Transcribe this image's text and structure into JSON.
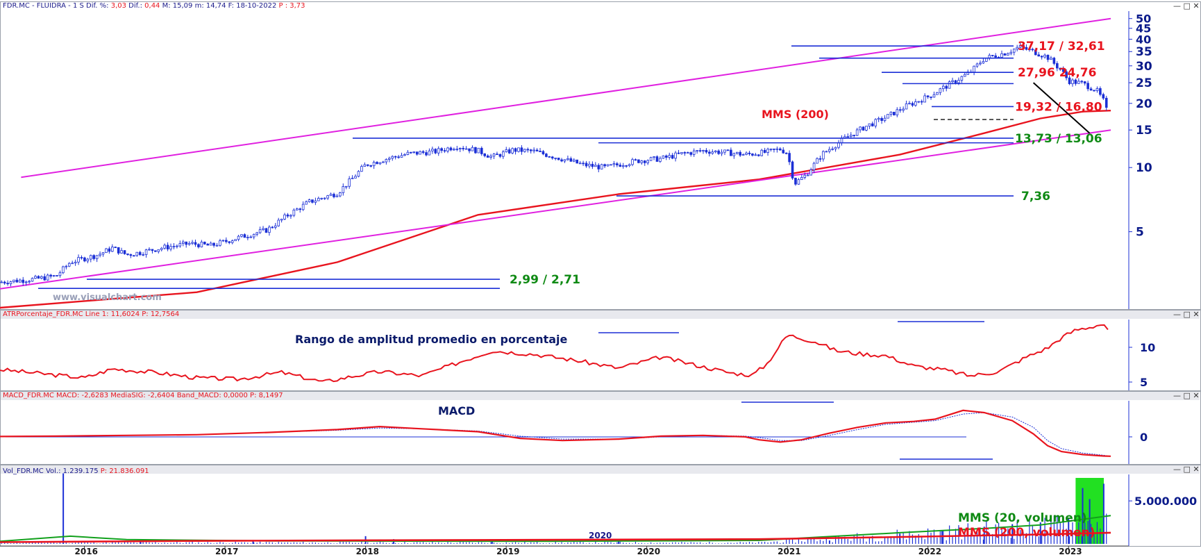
{
  "panels": {
    "price": {
      "header": [
        "FDR.MC - FLUIDRA - 1 S Dif. %: ",
        "3,03",
        " Dif.: ",
        "0,44",
        " M: 15,09 m: 14,74 F: 18-10-2022 ",
        "P : 3,73"
      ],
      "watermark": "www.visualchart.com",
      "mms_label": "MMS (200)",
      "level_labels": [
        {
          "text": "37,17 / 32,61",
          "color": "#e8141e"
        },
        {
          "text": "27,96 24,76",
          "color": "#e8141e"
        },
        {
          "text": "19,32 / 16,80",
          "color": "#e8141e"
        },
        {
          "text": "13,73 / 13,06",
          "color": "#0f8a14"
        },
        {
          "text": "7,36",
          "color": "#0f8a14"
        },
        {
          "text": "2,99 / 2,71",
          "color": "#0f8a14"
        }
      ],
      "y_ticks": [
        "50",
        "45",
        "40",
        "35",
        "30",
        "25",
        "20",
        "15",
        "10",
        "5"
      ]
    },
    "atr": {
      "header": "ATRPorcentaje_FDR.MC Line 1: 11,6024 P: 12,7564",
      "title": "Rango de amplitud promedio en porcentaje",
      "y_ticks": [
        "10",
        "5"
      ]
    },
    "macd": {
      "header": "MACD_FDR.MC MACD: -2,6283 MediaSIG: -2,6404 Band_MACD: 0,0000 P: 8,1497",
      "title": "MACD",
      "y_ticks": [
        "0"
      ]
    },
    "volume": {
      "header_a": "Vol_FDR.MC Vol.: 1.239.175",
      "header_b": " P: 21.836.091",
      "ma20_label": "MMS (20, volumen)",
      "ma200_label": "MMS (200, volumen)",
      "inline_year": "2020",
      "y_ticks": [
        "5.000.000"
      ]
    }
  },
  "x_axis": {
    "labels": [
      "2016",
      "2017",
      "2018",
      "2019",
      "2020",
      "2021",
      "2022",
      "2023"
    ]
  },
  "colors": {
    "candles": "#1b2fd6",
    "ma200": "#e8141e",
    "channel": "#e020e0",
    "levels": "#1b2fd6",
    "macd": "#e8141e",
    "signal": "#1b2fd6",
    "vol_ma20": "#12a01c",
    "highlight": "#22e022",
    "axis_text": "#0a1a8a"
  },
  "chart_data": [
    {
      "type": "candlestick",
      "name": "FDR.MC - FLUIDRA",
      "scale": "log",
      "ylim": [
        2.2,
        55
      ],
      "y_ticks": [
        5,
        10,
        15,
        20,
        25,
        30,
        35,
        40,
        45,
        50
      ],
      "x_range": [
        2015.6,
        2023.5
      ],
      "close_path": [
        [
          2015.6,
          2.9
        ],
        [
          2015.85,
          3.0
        ],
        [
          2016.0,
          3.1
        ],
        [
          2016.1,
          3.6
        ],
        [
          2016.3,
          3.9
        ],
        [
          2016.4,
          4.2
        ],
        [
          2016.5,
          3.9
        ],
        [
          2016.6,
          4.0
        ],
        [
          2016.75,
          4.2
        ],
        [
          2016.95,
          4.4
        ],
        [
          2017.1,
          4.3
        ],
        [
          2017.3,
          4.7
        ],
        [
          2017.5,
          5.1
        ],
        [
          2017.65,
          6.0
        ],
        [
          2017.8,
          6.9
        ],
        [
          2018.0,
          7.6
        ],
        [
          2018.1,
          8.8
        ],
        [
          2018.2,
          10.3
        ],
        [
          2018.35,
          11.0
        ],
        [
          2018.5,
          11.6
        ],
        [
          2018.7,
          11.9
        ],
        [
          2018.85,
          12.6
        ],
        [
          2019.0,
          12.0
        ],
        [
          2019.1,
          11.2
        ],
        [
          2019.25,
          12.1
        ],
        [
          2019.4,
          11.9
        ],
        [
          2019.55,
          11.2
        ],
        [
          2019.75,
          10.3
        ],
        [
          2019.9,
          10.0
        ],
        [
          2020.05,
          10.5
        ],
        [
          2020.15,
          10.8
        ],
        [
          2020.3,
          11.0
        ],
        [
          2020.45,
          11.6
        ],
        [
          2020.6,
          12.0
        ],
        [
          2020.75,
          11.8
        ],
        [
          2020.9,
          11.5
        ],
        [
          2021.05,
          11.8
        ],
        [
          2021.15,
          12.2
        ],
        [
          2021.2,
          11.7
        ],
        [
          2021.25,
          8.4
        ],
        [
          2021.33,
          9.2
        ],
        [
          2021.45,
          11.6
        ],
        [
          2021.6,
          13.6
        ],
        [
          2021.75,
          15.5
        ],
        [
          2021.9,
          17.2
        ],
        [
          2022.05,
          19.5
        ],
        [
          2022.2,
          21.5
        ],
        [
          2022.35,
          24.5
        ],
        [
          2022.5,
          28.0
        ],
        [
          2022.6,
          32.5
        ],
        [
          2022.75,
          34.5
        ],
        [
          2022.85,
          36.8
        ],
        [
          2022.95,
          35.0
        ],
        [
          2023.05,
          33.0
        ],
        [
          2023.15,
          28.5
        ],
        [
          2023.2,
          25.5
        ],
        [
          2023.3,
          24.8
        ],
        [
          2023.4,
          23.0
        ],
        [
          2023.45,
          20.5
        ],
        [
          2023.5,
          16.0
        ]
      ],
      "price_lines": [
        {
          "name": "ma200",
          "points": [
            [
              2015.6,
              2.2
            ],
            [
              2017.0,
              2.6
            ],
            [
              2018.0,
              3.6
            ],
            [
              2019.0,
              6.0
            ],
            [
              2020.0,
              7.5
            ],
            [
              2021.0,
              8.8
            ],
            [
              2022.0,
              11.5
            ],
            [
              2022.6,
              14.5
            ],
            [
              2023.0,
              17.0
            ],
            [
              2023.3,
              18.3
            ],
            [
              2023.5,
              18.5
            ]
          ]
        },
        {
          "name": "channel-upper",
          "points": [
            [
              2015.75,
              9.0
            ],
            [
              2023.5,
              50.0
            ]
          ]
        },
        {
          "name": "channel-lower",
          "points": [
            [
              2015.6,
              2.7
            ],
            [
              2023.5,
              15.0
            ]
          ]
        },
        {
          "name": "trendline-down",
          "points": [
            [
              2022.95,
              25.0
            ],
            [
              2023.35,
              14.5
            ]
          ]
        }
      ],
      "levels": [
        37.17,
        32.61,
        27.96,
        24.76,
        19.32,
        16.8,
        13.73,
        13.06,
        7.36,
        2.99,
        2.71
      ]
    },
    {
      "type": "line",
      "name": "ATRPorcentaje_FDR.MC",
      "ylim": [
        4,
        14
      ],
      "y_ticks": [
        5,
        10
      ],
      "series": [
        {
          "name": "Line 1",
          "points": [
            [
              2015.6,
              6.8
            ],
            [
              2016.0,
              6.0
            ],
            [
              2016.2,
              5.6
            ],
            [
              2016.4,
              6.9
            ],
            [
              2016.7,
              6.4
            ],
            [
              2017.0,
              5.6
            ],
            [
              2017.3,
              5.4
            ],
            [
              2017.6,
              6.4
            ],
            [
              2017.9,
              5.0
            ],
            [
              2018.1,
              5.8
            ],
            [
              2018.3,
              6.5
            ],
            [
              2018.6,
              5.9
            ],
            [
              2018.9,
              8.1
            ],
            [
              2019.1,
              9.5
            ],
            [
              2019.4,
              9.0
            ],
            [
              2019.7,
              8.1
            ],
            [
              2020.0,
              7.0
            ],
            [
              2020.3,
              8.6
            ],
            [
              2020.6,
              7.2
            ],
            [
              2020.8,
              6.3
            ],
            [
              2020.95,
              6.0
            ],
            [
              2021.05,
              7.5
            ],
            [
              2021.2,
              11.8
            ],
            [
              2021.4,
              10.8
            ],
            [
              2021.55,
              9.5
            ],
            [
              2021.7,
              9.1
            ],
            [
              2021.9,
              8.8
            ],
            [
              2022.1,
              7.3
            ],
            [
              2022.3,
              6.8
            ],
            [
              2022.5,
              5.9
            ],
            [
              2022.7,
              6.5
            ],
            [
              2022.9,
              8.6
            ],
            [
              2023.05,
              9.9
            ],
            [
              2023.15,
              11.4
            ],
            [
              2023.25,
              12.5
            ],
            [
              2023.35,
              12.9
            ],
            [
              2023.45,
              13.4
            ],
            [
              2023.5,
              11.6
            ]
          ]
        }
      ]
    },
    {
      "type": "line",
      "name": "MACD_FDR.MC",
      "ylim": [
        -3.5,
        5
      ],
      "y_ticks": [
        0
      ],
      "series": [
        {
          "name": "MACD",
          "points": [
            [
              2015.6,
              0.05
            ],
            [
              2016.0,
              0.1
            ],
            [
              2016.5,
              0.2
            ],
            [
              2017.0,
              0.3
            ],
            [
              2017.5,
              0.6
            ],
            [
              2018.0,
              1.0
            ],
            [
              2018.3,
              1.4
            ],
            [
              2018.6,
              1.1
            ],
            [
              2019.0,
              0.7
            ],
            [
              2019.3,
              -0.2
            ],
            [
              2019.6,
              -0.5
            ],
            [
              2020.0,
              -0.3
            ],
            [
              2020.3,
              0.1
            ],
            [
              2020.6,
              0.2
            ],
            [
              2020.9,
              0.0
            ],
            [
              2021.0,
              -0.4
            ],
            [
              2021.15,
              -0.7
            ],
            [
              2021.3,
              -0.4
            ],
            [
              2021.5,
              0.5
            ],
            [
              2021.7,
              1.3
            ],
            [
              2021.9,
              1.9
            ],
            [
              2022.1,
              2.1
            ],
            [
              2022.25,
              2.4
            ],
            [
              2022.45,
              3.6
            ],
            [
              2022.6,
              3.3
            ],
            [
              2022.8,
              2.2
            ],
            [
              2022.95,
              0.4
            ],
            [
              2023.05,
              -1.2
            ],
            [
              2023.15,
              -2.0
            ],
            [
              2023.3,
              -2.4
            ],
            [
              2023.45,
              -2.6
            ],
            [
              2023.5,
              -2.6283
            ]
          ]
        },
        {
          "name": "MediaSIG",
          "points": [
            [
              2015.6,
              0.05
            ],
            [
              2016.0,
              0.1
            ],
            [
              2016.5,
              0.2
            ],
            [
              2017.0,
              0.3
            ],
            [
              2017.5,
              0.6
            ],
            [
              2018.0,
              0.9
            ],
            [
              2018.3,
              1.2
            ],
            [
              2018.6,
              1.1
            ],
            [
              2019.0,
              0.8
            ],
            [
              2019.3,
              0.1
            ],
            [
              2019.6,
              -0.3
            ],
            [
              2020.0,
              -0.3
            ],
            [
              2020.3,
              0.0
            ],
            [
              2020.6,
              0.2
            ],
            [
              2020.9,
              0.1
            ],
            [
              2021.0,
              -0.1
            ],
            [
              2021.15,
              -0.5
            ],
            [
              2021.3,
              -0.5
            ],
            [
              2021.5,
              0.2
            ],
            [
              2021.7,
              1.0
            ],
            [
              2021.9,
              1.7
            ],
            [
              2022.1,
              2.0
            ],
            [
              2022.25,
              2.2
            ],
            [
              2022.45,
              3.1
            ],
            [
              2022.6,
              3.3
            ],
            [
              2022.8,
              2.7
            ],
            [
              2022.95,
              1.3
            ],
            [
              2023.05,
              -0.5
            ],
            [
              2023.15,
              -1.6
            ],
            [
              2023.3,
              -2.2
            ],
            [
              2023.45,
              -2.5
            ],
            [
              2023.5,
              -2.6404
            ]
          ]
        }
      ]
    },
    {
      "type": "bar",
      "name": "Vol_FDR.MC",
      "ylim": [
        0,
        8000000
      ],
      "y_ticks": [
        5000000
      ],
      "value_last": 1239175,
      "bars": [
        [
          2016.05,
          8200000
        ],
        [
          2016.6,
          300000
        ],
        [
          2017.4,
          450000
        ],
        [
          2018.2,
          900000
        ],
        [
          2018.4,
          550000
        ],
        [
          2019.1,
          400000
        ],
        [
          2020.0,
          300000
        ],
        [
          2021.5,
          400000
        ],
        [
          2022.0,
          1200000
        ],
        [
          2022.3,
          1600000
        ],
        [
          2022.6,
          2000000
        ],
        [
          2022.8,
          2300000
        ],
        [
          2023.0,
          2500000
        ],
        [
          2023.2,
          3000000
        ],
        [
          2023.3,
          6500000
        ],
        [
          2023.35,
          5200000
        ],
        [
          2023.45,
          7000000
        ]
      ],
      "series": [
        {
          "name": "MMS (20, volumen)",
          "points": [
            [
              2015.6,
              300000
            ],
            [
              2016.1,
              900000
            ],
            [
              2016.5,
              500000
            ],
            [
              2017.5,
              350000
            ],
            [
              2019.5,
              300000
            ],
            [
              2021.0,
              400000
            ],
            [
              2022.0,
              1300000
            ],
            [
              2022.6,
              1800000
            ],
            [
              2023.0,
              2200000
            ],
            [
              2023.5,
              3300000
            ]
          ]
        },
        {
          "name": "MMS (200, volumen)",
          "points": [
            [
              2015.6,
              200000
            ],
            [
              2017.0,
              350000
            ],
            [
              2019.0,
              450000
            ],
            [
              2021.0,
              550000
            ],
            [
              2022.0,
              800000
            ],
            [
              2023.0,
              1100000
            ],
            [
              2023.5,
              1300000
            ]
          ]
        }
      ],
      "highlight": [
        2023.25,
        2023.5
      ]
    }
  ]
}
